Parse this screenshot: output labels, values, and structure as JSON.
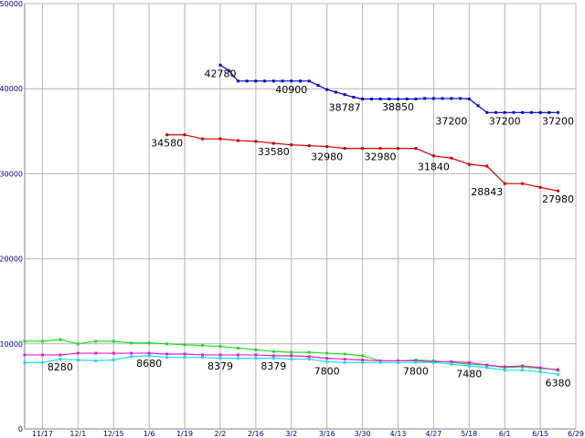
{
  "chart_data": {
    "type": "line",
    "title": "",
    "xlabel": "",
    "ylabel": "",
    "ylim": [
      0,
      50000
    ],
    "yticks": [
      "0",
      "10000",
      "20000",
      "30000",
      "40000",
      "50000"
    ],
    "xticks": [
      "11/17",
      "12/1",
      "12/15",
      "1/6",
      "1/19",
      "2/2",
      "2/16",
      "3/2",
      "3/16",
      "3/30",
      "4/13",
      "4/27",
      "5/18",
      "6/1",
      "6/15",
      "6/29"
    ],
    "grid": true,
    "colors": {
      "blue": "#0000cc",
      "red": "#cc0000",
      "green": "#22dd22",
      "magenta": "#dd22dd",
      "cyan": "#22dddd",
      "grid": "#b4b4b4",
      "axis_text": "#000080"
    },
    "series": [
      {
        "color": "#0000cc",
        "x": [
          11,
          11.5,
          12,
          12.5,
          13,
          13.5,
          14,
          14.5,
          15,
          15.5,
          16,
          16.5,
          17,
          17.5,
          18,
          18.5,
          19,
          19.5,
          20,
          20.5,
          21,
          21.5,
          22,
          22.5,
          23,
          23.5,
          24,
          24.5,
          25,
          25.5,
          26,
          26.5,
          27,
          27.5,
          28,
          28.5,
          29,
          29.5,
          30
        ],
        "values": [
          42780,
          42100,
          40900,
          40900,
          40900,
          40900,
          40900,
          40900,
          40900,
          40900,
          40900,
          40400,
          39900,
          39600,
          39300,
          39000,
          38787,
          38787,
          38787,
          38787,
          38787,
          38787,
          38787,
          38850,
          38850,
          38850,
          38850,
          38850,
          38800,
          38000,
          37200,
          37200,
          37200,
          37200,
          37200,
          37200,
          37200,
          37200,
          37200
        ]
      },
      {
        "color": "#cc0000",
        "x": [
          8,
          9,
          10,
          11,
          12,
          13,
          14,
          15,
          16,
          17,
          18,
          19,
          20,
          21,
          22,
          23,
          24,
          25,
          26,
          27,
          28,
          29,
          30
        ],
        "values": [
          34580,
          34580,
          34100,
          34100,
          33900,
          33800,
          33580,
          33400,
          33300,
          33200,
          32980,
          32980,
          32980,
          32980,
          32980,
          32100,
          31840,
          31100,
          30900,
          28843,
          28843,
          28400,
          27980
        ]
      },
      {
        "color": "#22dd22",
        "x": [
          0,
          1,
          2,
          3,
          4,
          5,
          6,
          7,
          8,
          9,
          10,
          11,
          12,
          13,
          14,
          15,
          16,
          17,
          18,
          19,
          20,
          21,
          22,
          23,
          24,
          25,
          26,
          27,
          28,
          29,
          30
        ],
        "values": [
          10300,
          10300,
          10500,
          10000,
          10300,
          10300,
          10100,
          10100,
          10000,
          9900,
          9800,
          9700,
          9500,
          9300,
          9100,
          9000,
          9000,
          8900,
          8800,
          8600,
          8000,
          8000,
          8100,
          8000,
          7800,
          7600,
          7500,
          7200,
          7300,
          7100,
          7000
        ]
      },
      {
        "color": "#dd22dd",
        "x": [
          0,
          1,
          2,
          3,
          4,
          5,
          6,
          7,
          8,
          9,
          10,
          11,
          12,
          13,
          14,
          15,
          16,
          17,
          18,
          19,
          20,
          21,
          22,
          23,
          24,
          25,
          26,
          27,
          28,
          29,
          30
        ],
        "values": [
          8700,
          8700,
          8700,
          8900,
          8900,
          8900,
          8900,
          8900,
          8800,
          8800,
          8700,
          8700,
          8700,
          8700,
          8600,
          8600,
          8500,
          8300,
          8200,
          8100,
          8000,
          8000,
          8000,
          7900,
          7900,
          7800,
          7500,
          7300,
          7400,
          7200,
          6900
        ]
      },
      {
        "color": "#22dddd",
        "x": [
          0,
          1,
          2,
          3,
          4,
          5,
          6,
          7,
          8,
          9,
          10,
          11,
          12,
          13,
          14,
          15,
          16,
          17,
          18,
          19,
          20,
          21,
          22,
          23,
          24,
          25,
          26,
          27,
          28,
          29,
          30
        ],
        "values": [
          7800,
          7800,
          8200,
          8100,
          8000,
          8100,
          8500,
          8600,
          8400,
          8400,
          8400,
          8300,
          8300,
          8300,
          8300,
          8200,
          8200,
          7900,
          7800,
          7800,
          7800,
          7800,
          7800,
          7800,
          7600,
          7400,
          7200,
          6900,
          6900,
          6700,
          6400
        ]
      }
    ],
    "annotations": [
      {
        "text": "42780",
        "x": 11,
        "y": 42780
      },
      {
        "text": "40900",
        "x": 15,
        "y": 40900
      },
      {
        "text": "38787",
        "x": 18,
        "y": 38787
      },
      {
        "text": "38850",
        "x": 21,
        "y": 38850
      },
      {
        "text": "37200",
        "x": 24,
        "y": 37200
      },
      {
        "text": "37200",
        "x": 27,
        "y": 37200
      },
      {
        "text": "37200",
        "x": 30,
        "y": 37200
      },
      {
        "text": "34580",
        "x": 8,
        "y": 34580
      },
      {
        "text": "33580",
        "x": 14,
        "y": 33580
      },
      {
        "text": "32980",
        "x": 17,
        "y": 32980
      },
      {
        "text": "32980",
        "x": 20,
        "y": 32980
      },
      {
        "text": "31840",
        "x": 23,
        "y": 31840
      },
      {
        "text": "28843",
        "x": 26,
        "y": 28843
      },
      {
        "text": "27980",
        "x": 30,
        "y": 27980
      },
      {
        "text": "8280",
        "x": 2,
        "y": 8280
      },
      {
        "text": "8680",
        "x": 7,
        "y": 8680
      },
      {
        "text": "8379",
        "x": 11,
        "y": 8379
      },
      {
        "text": "8379",
        "x": 14,
        "y": 8379
      },
      {
        "text": "7800",
        "x": 17,
        "y": 7800
      },
      {
        "text": "7800",
        "x": 22,
        "y": 7800
      },
      {
        "text": "7480",
        "x": 25,
        "y": 7480
      },
      {
        "text": "6380",
        "x": 30,
        "y": 6380
      }
    ]
  }
}
